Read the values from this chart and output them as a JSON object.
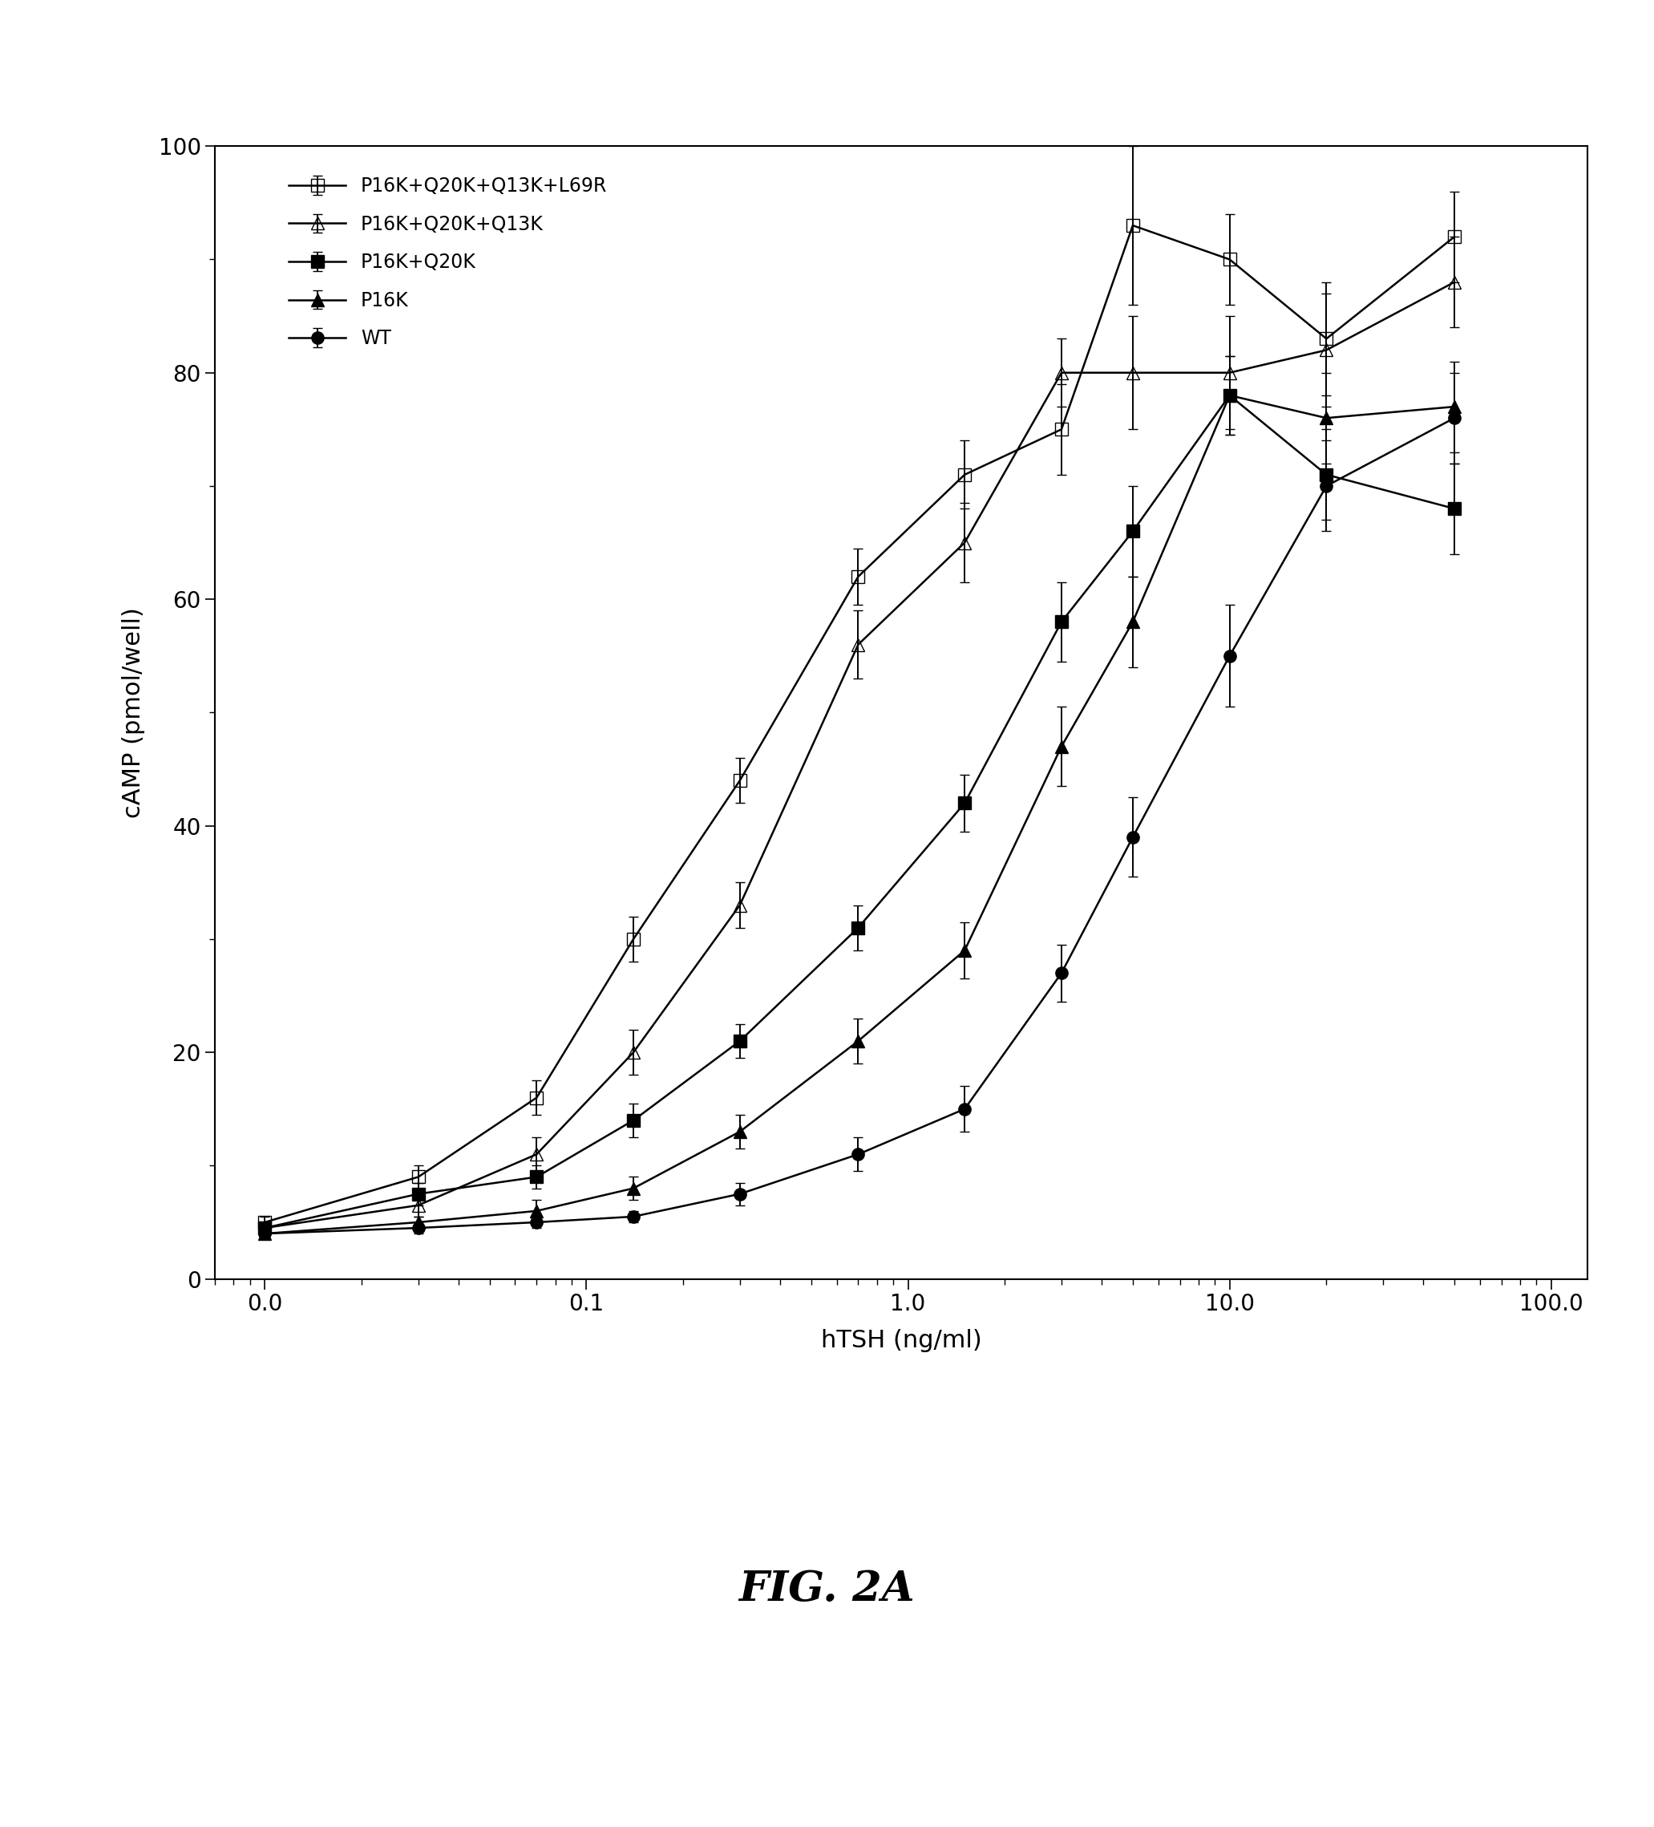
{
  "title": "FIG. 2A",
  "xlabel": "hTSH (ng/ml)",
  "ylabel": "cAMP (pmol/well)",
  "ylim": [
    0,
    100
  ],
  "x_values": [
    0.01,
    0.03,
    0.07,
    0.14,
    0.3,
    0.7,
    1.5,
    3.0,
    5.0,
    10.0,
    20.0,
    50.0
  ],
  "P16K_Q20K_Q13K_L69R_y": [
    5.0,
    9.0,
    16.0,
    30.0,
    44.0,
    62.0,
    71.0,
    75.0,
    93.0,
    90.0,
    83.0,
    92.0
  ],
  "P16K_Q20K_Q13K_L69R_err": [
    0.5,
    1.0,
    1.5,
    2.0,
    2.0,
    2.5,
    3.0,
    4.0,
    7.0,
    4.0,
    5.0,
    4.0
  ],
  "P16K_Q20K_Q13K_y": [
    4.5,
    6.5,
    11.0,
    20.0,
    33.0,
    56.0,
    65.0,
    80.0,
    80.0,
    80.0,
    82.0,
    88.0
  ],
  "P16K_Q20K_Q13K_err": [
    0.5,
    1.0,
    1.5,
    2.0,
    2.0,
    3.0,
    3.5,
    3.0,
    5.0,
    5.0,
    5.0,
    4.0
  ],
  "P16K_Q20K_y": [
    4.5,
    7.5,
    9.0,
    14.0,
    21.0,
    31.0,
    42.0,
    58.0,
    66.0,
    78.0,
    71.0,
    68.0
  ],
  "P16K_Q20K_err": [
    0.5,
    1.0,
    1.0,
    1.5,
    1.5,
    2.0,
    2.5,
    3.5,
    4.0,
    3.5,
    4.0,
    4.0
  ],
  "P16K_y": [
    4.0,
    5.0,
    6.0,
    8.0,
    13.0,
    21.0,
    29.0,
    47.0,
    58.0,
    78.0,
    76.0,
    77.0
  ],
  "P16K_err": [
    0.5,
    0.5,
    1.0,
    1.0,
    1.5,
    2.0,
    2.5,
    3.5,
    4.0,
    3.5,
    4.0,
    4.0
  ],
  "WT_y": [
    4.0,
    4.5,
    5.0,
    5.5,
    7.5,
    11.0,
    15.0,
    27.0,
    39.0,
    55.0,
    70.0,
    76.0
  ],
  "WT_err": [
    0.5,
    0.5,
    0.5,
    0.5,
    1.0,
    1.5,
    2.0,
    2.5,
    3.5,
    4.5,
    4.0,
    4.0
  ],
  "series_labels": [
    "P16K+Q20K+Q13K+L69R",
    "P16K+Q20K+Q13K",
    "P16K+Q20K",
    "P16K",
    "WT"
  ],
  "series_keys": [
    "P16K_Q20K_Q13K_L69R",
    "P16K_Q20K_Q13K",
    "P16K_Q20K",
    "P16K",
    "WT"
  ],
  "markers": [
    "s",
    "^",
    "s",
    "^",
    "o"
  ],
  "fillstyles": [
    "none",
    "none",
    "full",
    "full",
    "full"
  ],
  "x_tick_positions": [
    0.01,
    0.1,
    1.0,
    10.0,
    100.0
  ],
  "x_tick_labels": [
    "0.0",
    "0.1",
    "1.0",
    "10.0",
    "100.0"
  ],
  "y_tick_positions": [
    0,
    20,
    40,
    60,
    80,
    100
  ],
  "y_tick_labels": [
    "0",
    "20",
    "40",
    "60",
    "80",
    "100"
  ],
  "background_color": "#ffffff",
  "linewidth": 1.8,
  "markersize": 11,
  "capsize": 4,
  "elinewidth": 1.4,
  "tick_fontsize": 20,
  "label_fontsize": 22,
  "legend_fontsize": 17,
  "title_fontsize": 38
}
